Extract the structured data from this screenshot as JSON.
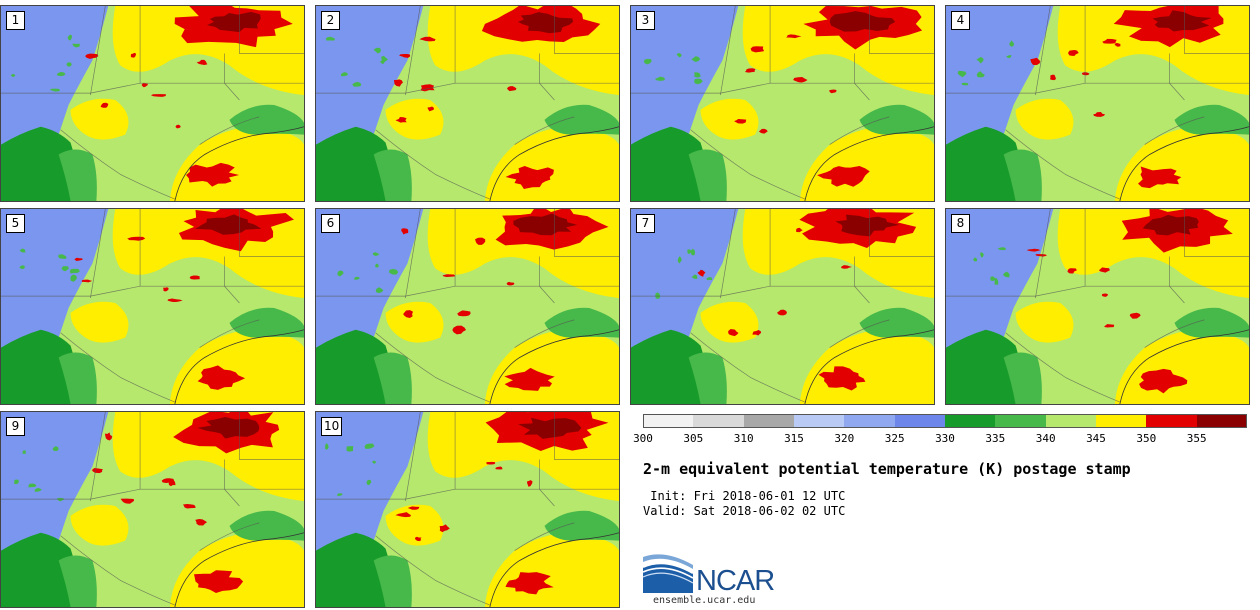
{
  "panels": [
    {
      "label": "1"
    },
    {
      "label": "2"
    },
    {
      "label": "3"
    },
    {
      "label": "4"
    },
    {
      "label": "5"
    },
    {
      "label": "6"
    },
    {
      "label": "7"
    },
    {
      "label": "8"
    },
    {
      "label": "9"
    },
    {
      "label": "10"
    }
  ],
  "colorbar": {
    "bins": [
      {
        "min": 300,
        "max": 305,
        "color": "#f2f2f2"
      },
      {
        "min": 305,
        "max": 310,
        "color": "#d9d9d9"
      },
      {
        "min": 310,
        "max": 315,
        "color": "#a8a8a8"
      },
      {
        "min": 315,
        "max": 320,
        "color": "#b9cbf4"
      },
      {
        "min": 320,
        "max": 325,
        "color": "#8fa8f0"
      },
      {
        "min": 325,
        "max": 330,
        "color": "#6d86ea"
      },
      {
        "min": 330,
        "max": 335,
        "color": "#179b2a"
      },
      {
        "min": 335,
        "max": 340,
        "color": "#47b84a"
      },
      {
        "min": 340,
        "max": 345,
        "color": "#b5e86c"
      },
      {
        "min": 345,
        "max": 350,
        "color": "#ffee00"
      },
      {
        "min": 350,
        "max": 355,
        "color": "#e20000"
      },
      {
        "min": 355,
        "max": 360,
        "color": "#8a0000"
      }
    ],
    "tick_labels": [
      "300",
      "305",
      "310",
      "315",
      "320",
      "325",
      "330",
      "335",
      "340",
      "345",
      "350",
      "355"
    ]
  },
  "title": "2-m equivalent potential temperature (K) postage stamp",
  "init_text": " Init: Fri 2018-06-01 12 UTC",
  "valid_text": "Valid: Sat 2018-06-02 02 UTC",
  "logo": {
    "text": "NCAR",
    "url": "ensemble.ucar.edu"
  },
  "colors": {
    "cold_region": "#7b96ee",
    "dark_green": "#179b2a",
    "mid_green": "#47b84a",
    "light_green": "#b5e86c",
    "yellow": "#ffee00",
    "red": "#e20000",
    "dark_red": "#8a0000",
    "border_lines": "#555555"
  }
}
